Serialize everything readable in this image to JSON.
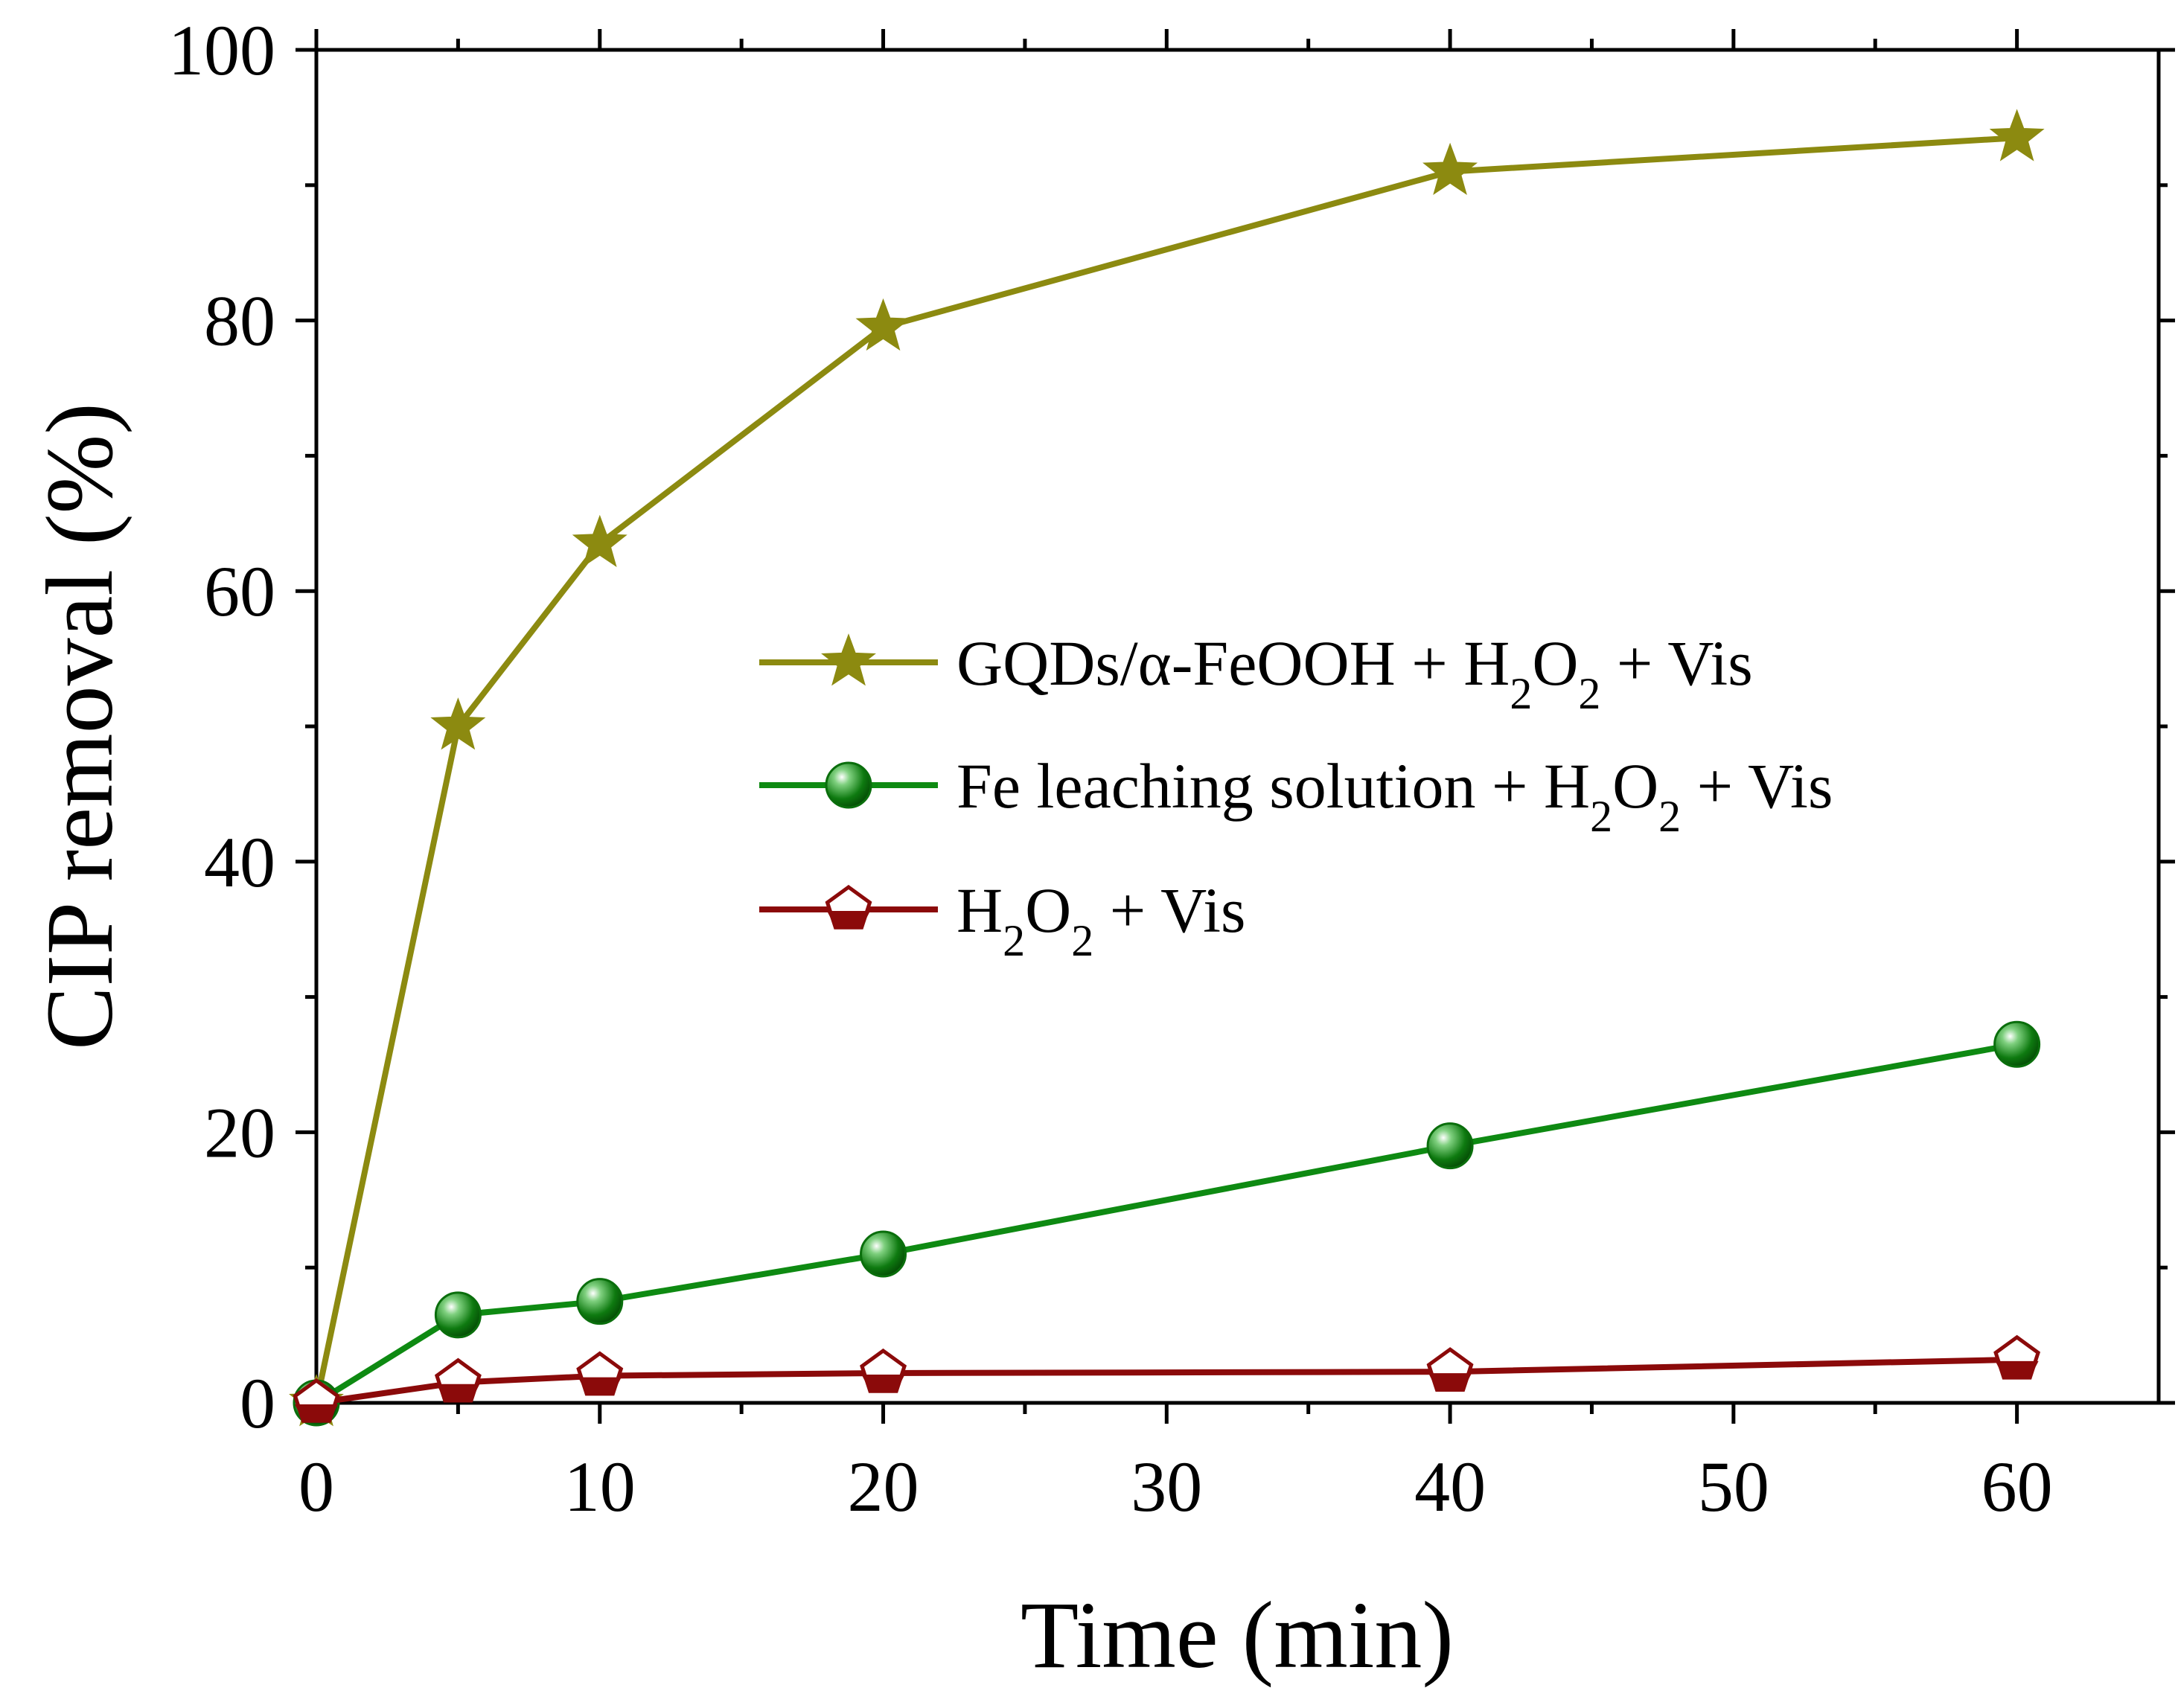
{
  "chart_data": {
    "type": "line",
    "title": "",
    "xlabel": "Time (min)",
    "ylabel": "CIP removal (%)",
    "xlim": [
      0,
      65
    ],
    "ylim": [
      0,
      100
    ],
    "x_ticks": [
      0,
      10,
      20,
      30,
      40,
      50,
      60
    ],
    "y_ticks": [
      0,
      20,
      40,
      60,
      80,
      100
    ],
    "x_tick_labels": [
      "0",
      "10",
      "20",
      "30",
      "40",
      "50",
      "60"
    ],
    "y_tick_labels": [
      "0",
      "20",
      "40",
      "60",
      "80",
      "100"
    ],
    "x": [
      0,
      5,
      10,
      20,
      40,
      60
    ],
    "grid": false,
    "legend_position": "center-right",
    "series": [
      {
        "name": "GQDs/α-FeOOH + H2O2 + Vis",
        "legend_parts": [
          "GQDs/α-FeOOH + H",
          "2",
          "O",
          "2",
          " + Vis"
        ],
        "marker": "star",
        "color": "#8c8a10",
        "values": [
          0,
          50,
          63.5,
          79.5,
          91,
          93.5
        ]
      },
      {
        "name": "Fe leaching solution + H2O2 + Vis",
        "legend_parts": [
          "Fe leaching solution + H",
          "2",
          "O",
          "2",
          " + Vis"
        ],
        "marker": "sphere",
        "color": "#0e8a12",
        "values": [
          0,
          6.5,
          7.5,
          11,
          19,
          26.5
        ]
      },
      {
        "name": "H2O2 + Vis",
        "legend_parts": [
          "H",
          "2",
          "O",
          "2",
          " + Vis"
        ],
        "marker": "pentagon-half",
        "color": "#8b0a0a",
        "values": [
          0,
          1.5,
          2,
          2.2,
          2.3,
          3.2
        ]
      }
    ]
  }
}
